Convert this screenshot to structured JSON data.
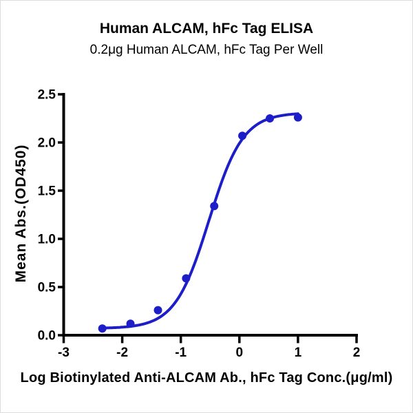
{
  "chart_data": {
    "type": "scatter",
    "title": "Human ALCAM, hFc Tag ELISA",
    "subtitle": "0.2μg Human ALCAM, hFc Tag Per Well",
    "xlabel": "Log Biotinylated Anti-ALCAM Ab., hFc Tag Conc.(μg/ml)",
    "ylabel": "Mean Abs.(OD450)",
    "xlim": [
      -3,
      2
    ],
    "ylim": [
      0,
      2.5
    ],
    "x_ticks": [
      -3,
      -2,
      -1,
      0,
      1,
      2
    ],
    "x_tick_labels": [
      "-3",
      "-2",
      "-1",
      "0",
      "1",
      "2"
    ],
    "y_ticks": [
      0,
      0.5,
      1.0,
      1.5,
      2.0,
      2.5
    ],
    "y_tick_labels": [
      "0.0",
      "0.5",
      "1.0",
      "1.5",
      "2.0",
      "2.5"
    ],
    "grid": false,
    "legend": "none",
    "points": [
      {
        "log_conc": -2.34,
        "od": 0.07
      },
      {
        "log_conc": -1.86,
        "od": 0.12
      },
      {
        "log_conc": -1.39,
        "od": 0.26
      },
      {
        "log_conc": -0.91,
        "od": 0.59
      },
      {
        "log_conc": -0.43,
        "od": 1.34
      },
      {
        "log_conc": 0.05,
        "od": 2.07
      },
      {
        "log_conc": 0.52,
        "od": 2.25
      },
      {
        "log_conc": 1.0,
        "od": 2.26
      }
    ],
    "curve_fit": {
      "model": "4PL",
      "bottom": 0.07,
      "top": 2.31,
      "log_ec50": -0.52,
      "hill_slope": 1.5
    },
    "colors": {
      "series": "#1e1ec8",
      "axis": "#000000",
      "text": "#000000",
      "background": "#ffffff"
    }
  }
}
